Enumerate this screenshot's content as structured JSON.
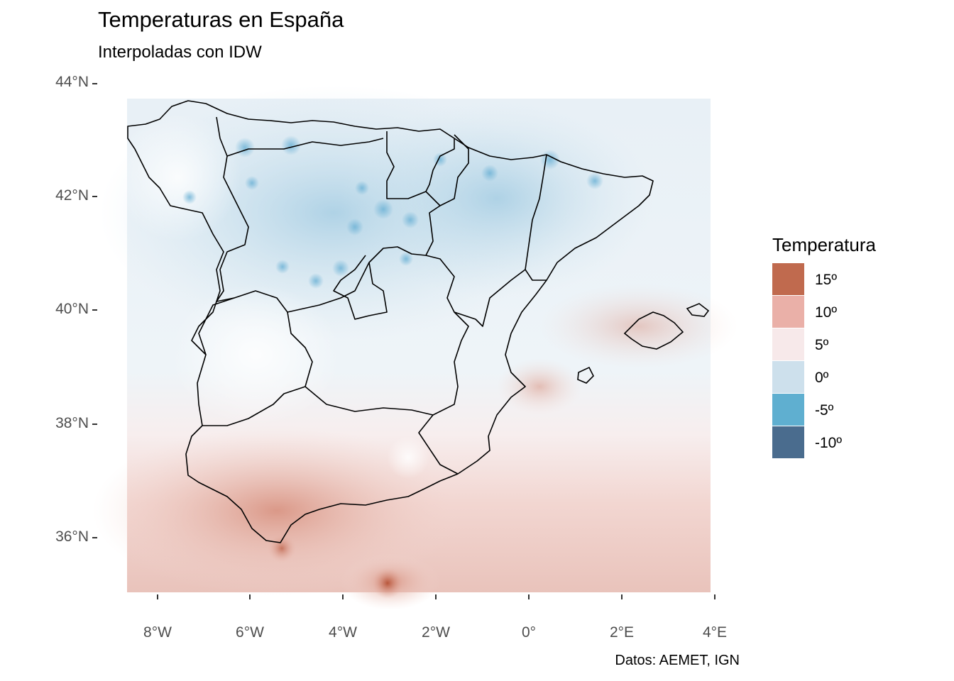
{
  "title": "Temperaturas en España",
  "subtitle": "Interpoladas con IDW",
  "caption": "Datos: AEMET, IGN",
  "axes": {
    "y_ticks": [
      "44°N",
      "42°N",
      "40°N",
      "38°N",
      "36°N"
    ],
    "x_ticks": [
      "8°W",
      "6°W",
      "4°W",
      "2°W",
      "0°",
      "2°E",
      "4°E"
    ],
    "lat_range": [
      35.0,
      43.7
    ],
    "lon_range": [
      -8.6,
      3.8
    ]
  },
  "legend": {
    "title": "Temperatura",
    "items": [
      {
        "label": "15º",
        "color": "#C06A4E"
      },
      {
        "label": "10º",
        "color": "#EAB0A8"
      },
      {
        "label": "5º",
        "color": "#F7E9EA"
      },
      {
        "label": "0º",
        "color": "#CDE0EC"
      },
      {
        "label": "-5º",
        "color": "#5FAFD0"
      },
      {
        "label": "-10º",
        "color": "#4A6C8E"
      }
    ]
  }
}
